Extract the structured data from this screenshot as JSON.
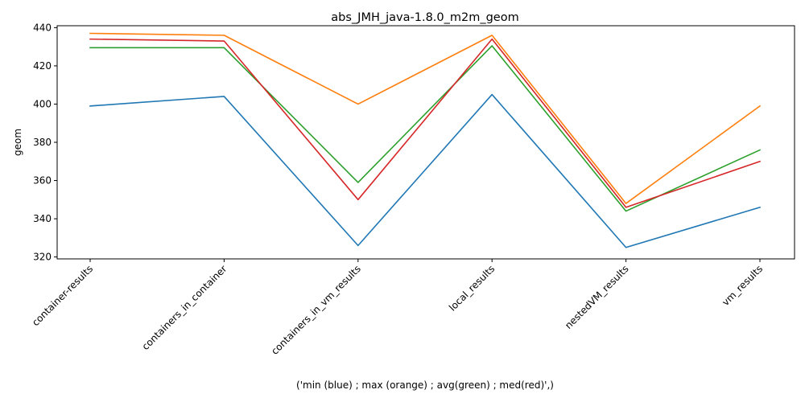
{
  "chart_data": {
    "type": "line",
    "title": "abs_JMH_java-1.8.0_m2m_geom",
    "xlabel": "('min (blue) ; max (orange) ; avg(green) ; med(red)',)",
    "ylabel": "geom",
    "categories": [
      "container-results",
      "containers_in_container",
      "containers_in_vm_results",
      "local_results",
      "nestedVM_results",
      "vm_results"
    ],
    "ylim": [
      319,
      441
    ],
    "yticks": [
      320,
      340,
      360,
      380,
      400,
      420,
      440
    ],
    "grid": false,
    "series": [
      {
        "color": "#1f77b4",
        "values": [
          399,
          404,
          326,
          405,
          325,
          346
        ]
      },
      {
        "color": "#ff7f0e",
        "values": [
          437,
          436,
          400,
          436,
          348,
          399
        ]
      },
      {
        "color": "#2ca02c",
        "values": [
          429.5,
          429.5,
          359,
          430.5,
          344,
          376
        ]
      },
      {
        "color": "#d62728",
        "values": [
          434,
          433,
          350,
          434,
          346,
          370
        ]
      }
    ]
  }
}
